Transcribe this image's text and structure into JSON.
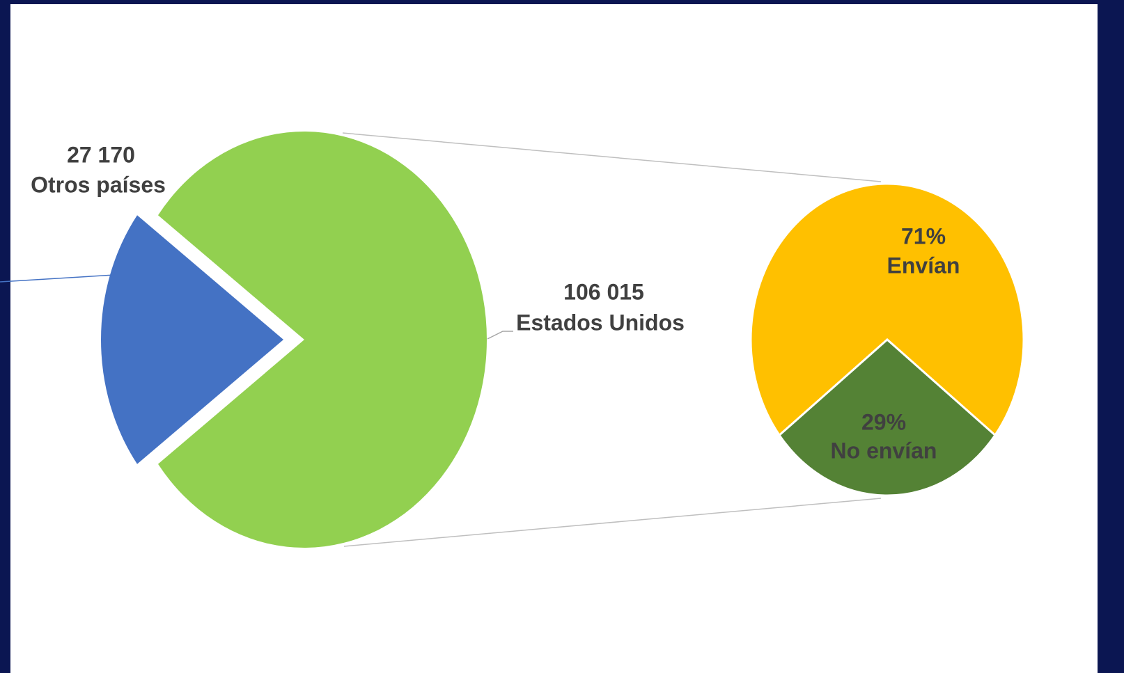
{
  "chart_data": [
    {
      "type": "pie",
      "categories": [
        "Otros países",
        "Estados Unidos"
      ],
      "values": [
        27170,
        106015
      ],
      "value_labels": [
        "27 170",
        "106 015"
      ],
      "colors": [
        "#4472c4",
        "#92d050"
      ]
    },
    {
      "type": "pie",
      "categories": [
        "Envían",
        "No envían"
      ],
      "values": [
        71,
        29
      ],
      "value_labels": [
        "71%",
        "29%"
      ],
      "colors": [
        "#ffc000",
        "#548235"
      ]
    }
  ]
}
